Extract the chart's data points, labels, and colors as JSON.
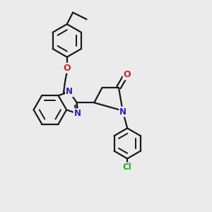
{
  "background_color": "#ebebeb",
  "bond_color": "#1a1a1a",
  "N_color": "#2222cc",
  "O_color": "#cc2222",
  "Cl_color": "#22aa22",
  "line_width": 1.6,
  "figsize": [
    3.0,
    3.0
  ],
  "dpi": 100,
  "xlim": [
    0,
    10
  ],
  "ylim": [
    0,
    10
  ]
}
